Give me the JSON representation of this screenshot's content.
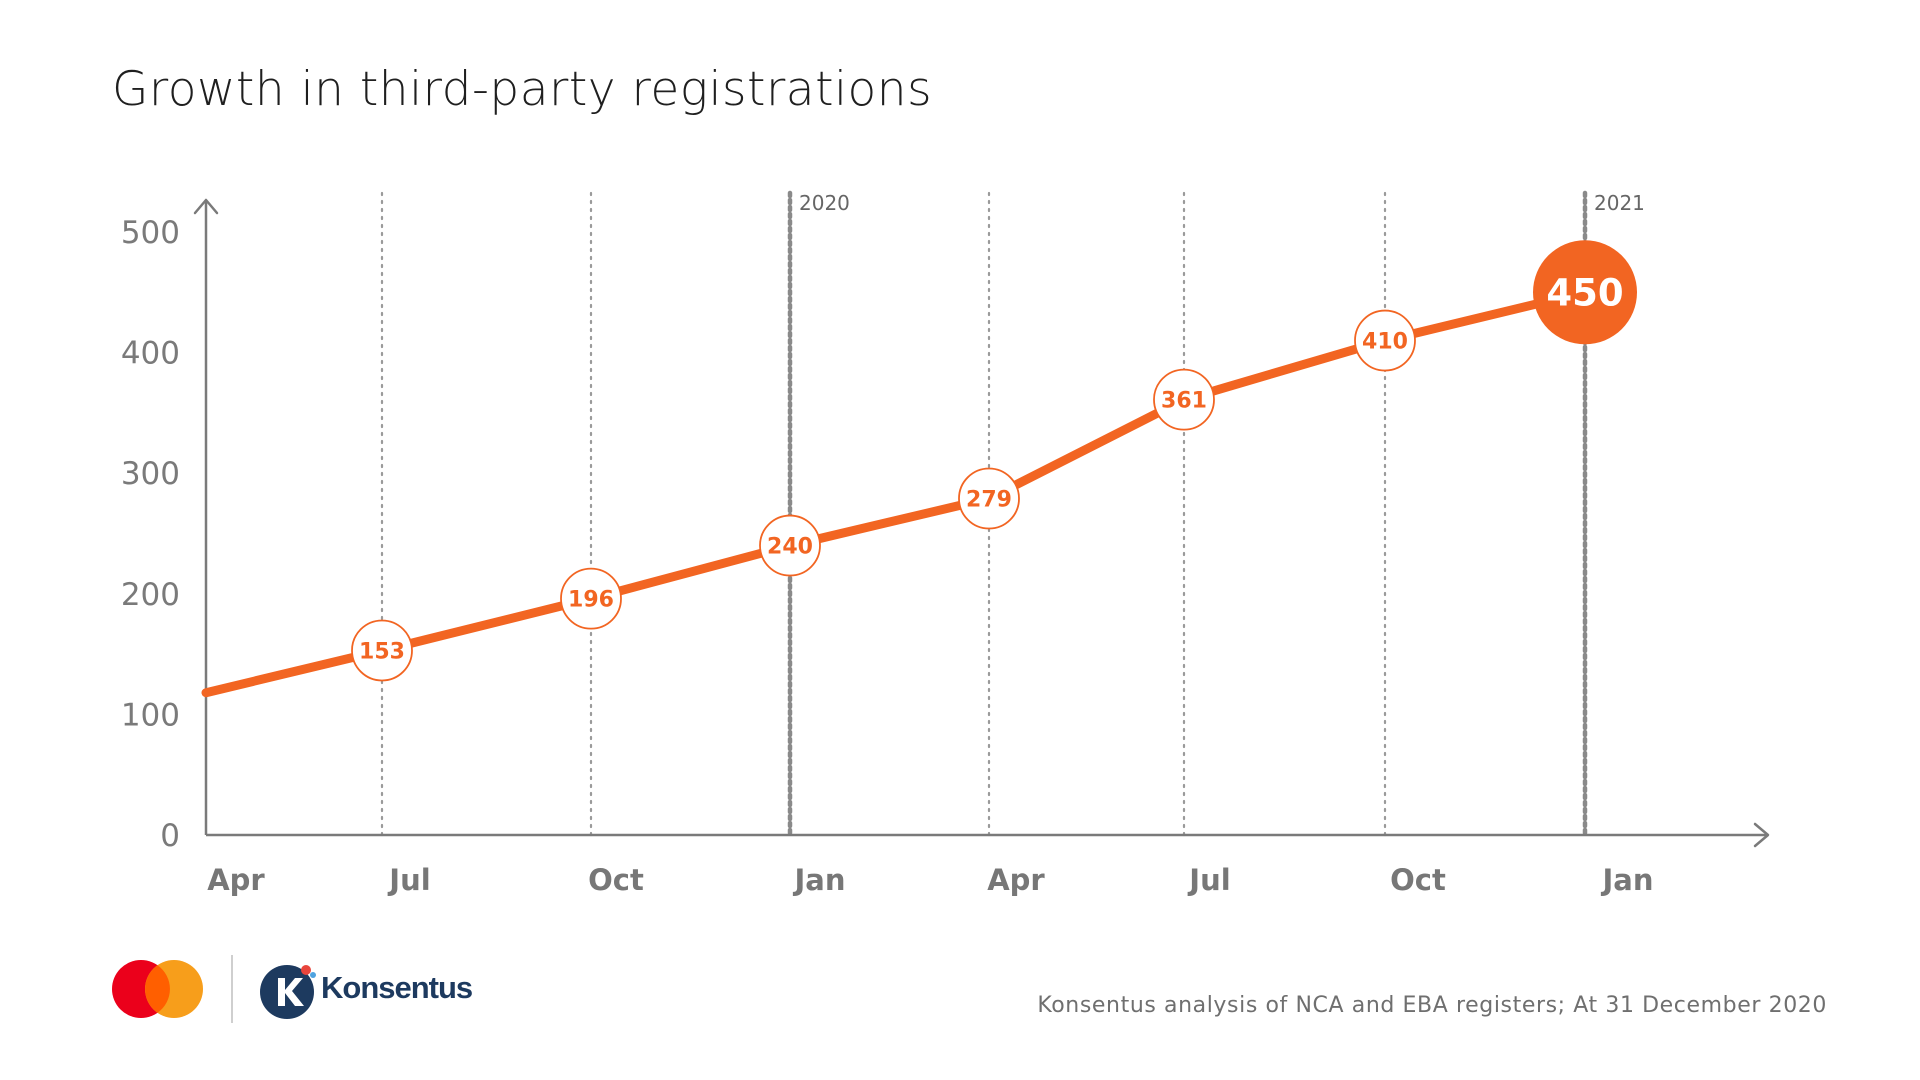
{
  "chart_data": {
    "type": "line",
    "title": "Growth in third-party registrations",
    "x": [
      "Apr",
      "Jul",
      "Oct",
      "Jan",
      "Apr",
      "Jul",
      "Oct",
      "Jan"
    ],
    "series": [
      {
        "values": [
          118,
          153,
          196,
          240,
          279,
          361,
          410,
          450
        ],
        "labels": [
          "",
          "153",
          "196",
          "240",
          "279",
          "361",
          "410",
          "450"
        ],
        "color": "#f26522"
      }
    ],
    "year_markers": [
      {
        "at": "Jan",
        "label": "2020"
      },
      {
        "at": "Jan",
        "label": "2021"
      }
    ],
    "yticks": [
      "0",
      "100",
      "200",
      "300",
      "400",
      "500"
    ],
    "ylim": [
      0,
      520
    ],
    "xlabel": "",
    "ylabel": "",
    "grid": "vertical dotted lines at quarters",
    "legend": "none"
  },
  "footer": {
    "brand_name": "Konsentus",
    "partner_logo": "mastercard-logo",
    "source": "Konsentus analysis of NCA and EBA registers;  At 31 December 2020"
  },
  "colors": {
    "accent": "#f26522",
    "axis": "#7a7a7a",
    "brand_navy": "#1d3a5f",
    "mc_red": "#eb001b",
    "mc_yellow": "#f79e1b"
  }
}
